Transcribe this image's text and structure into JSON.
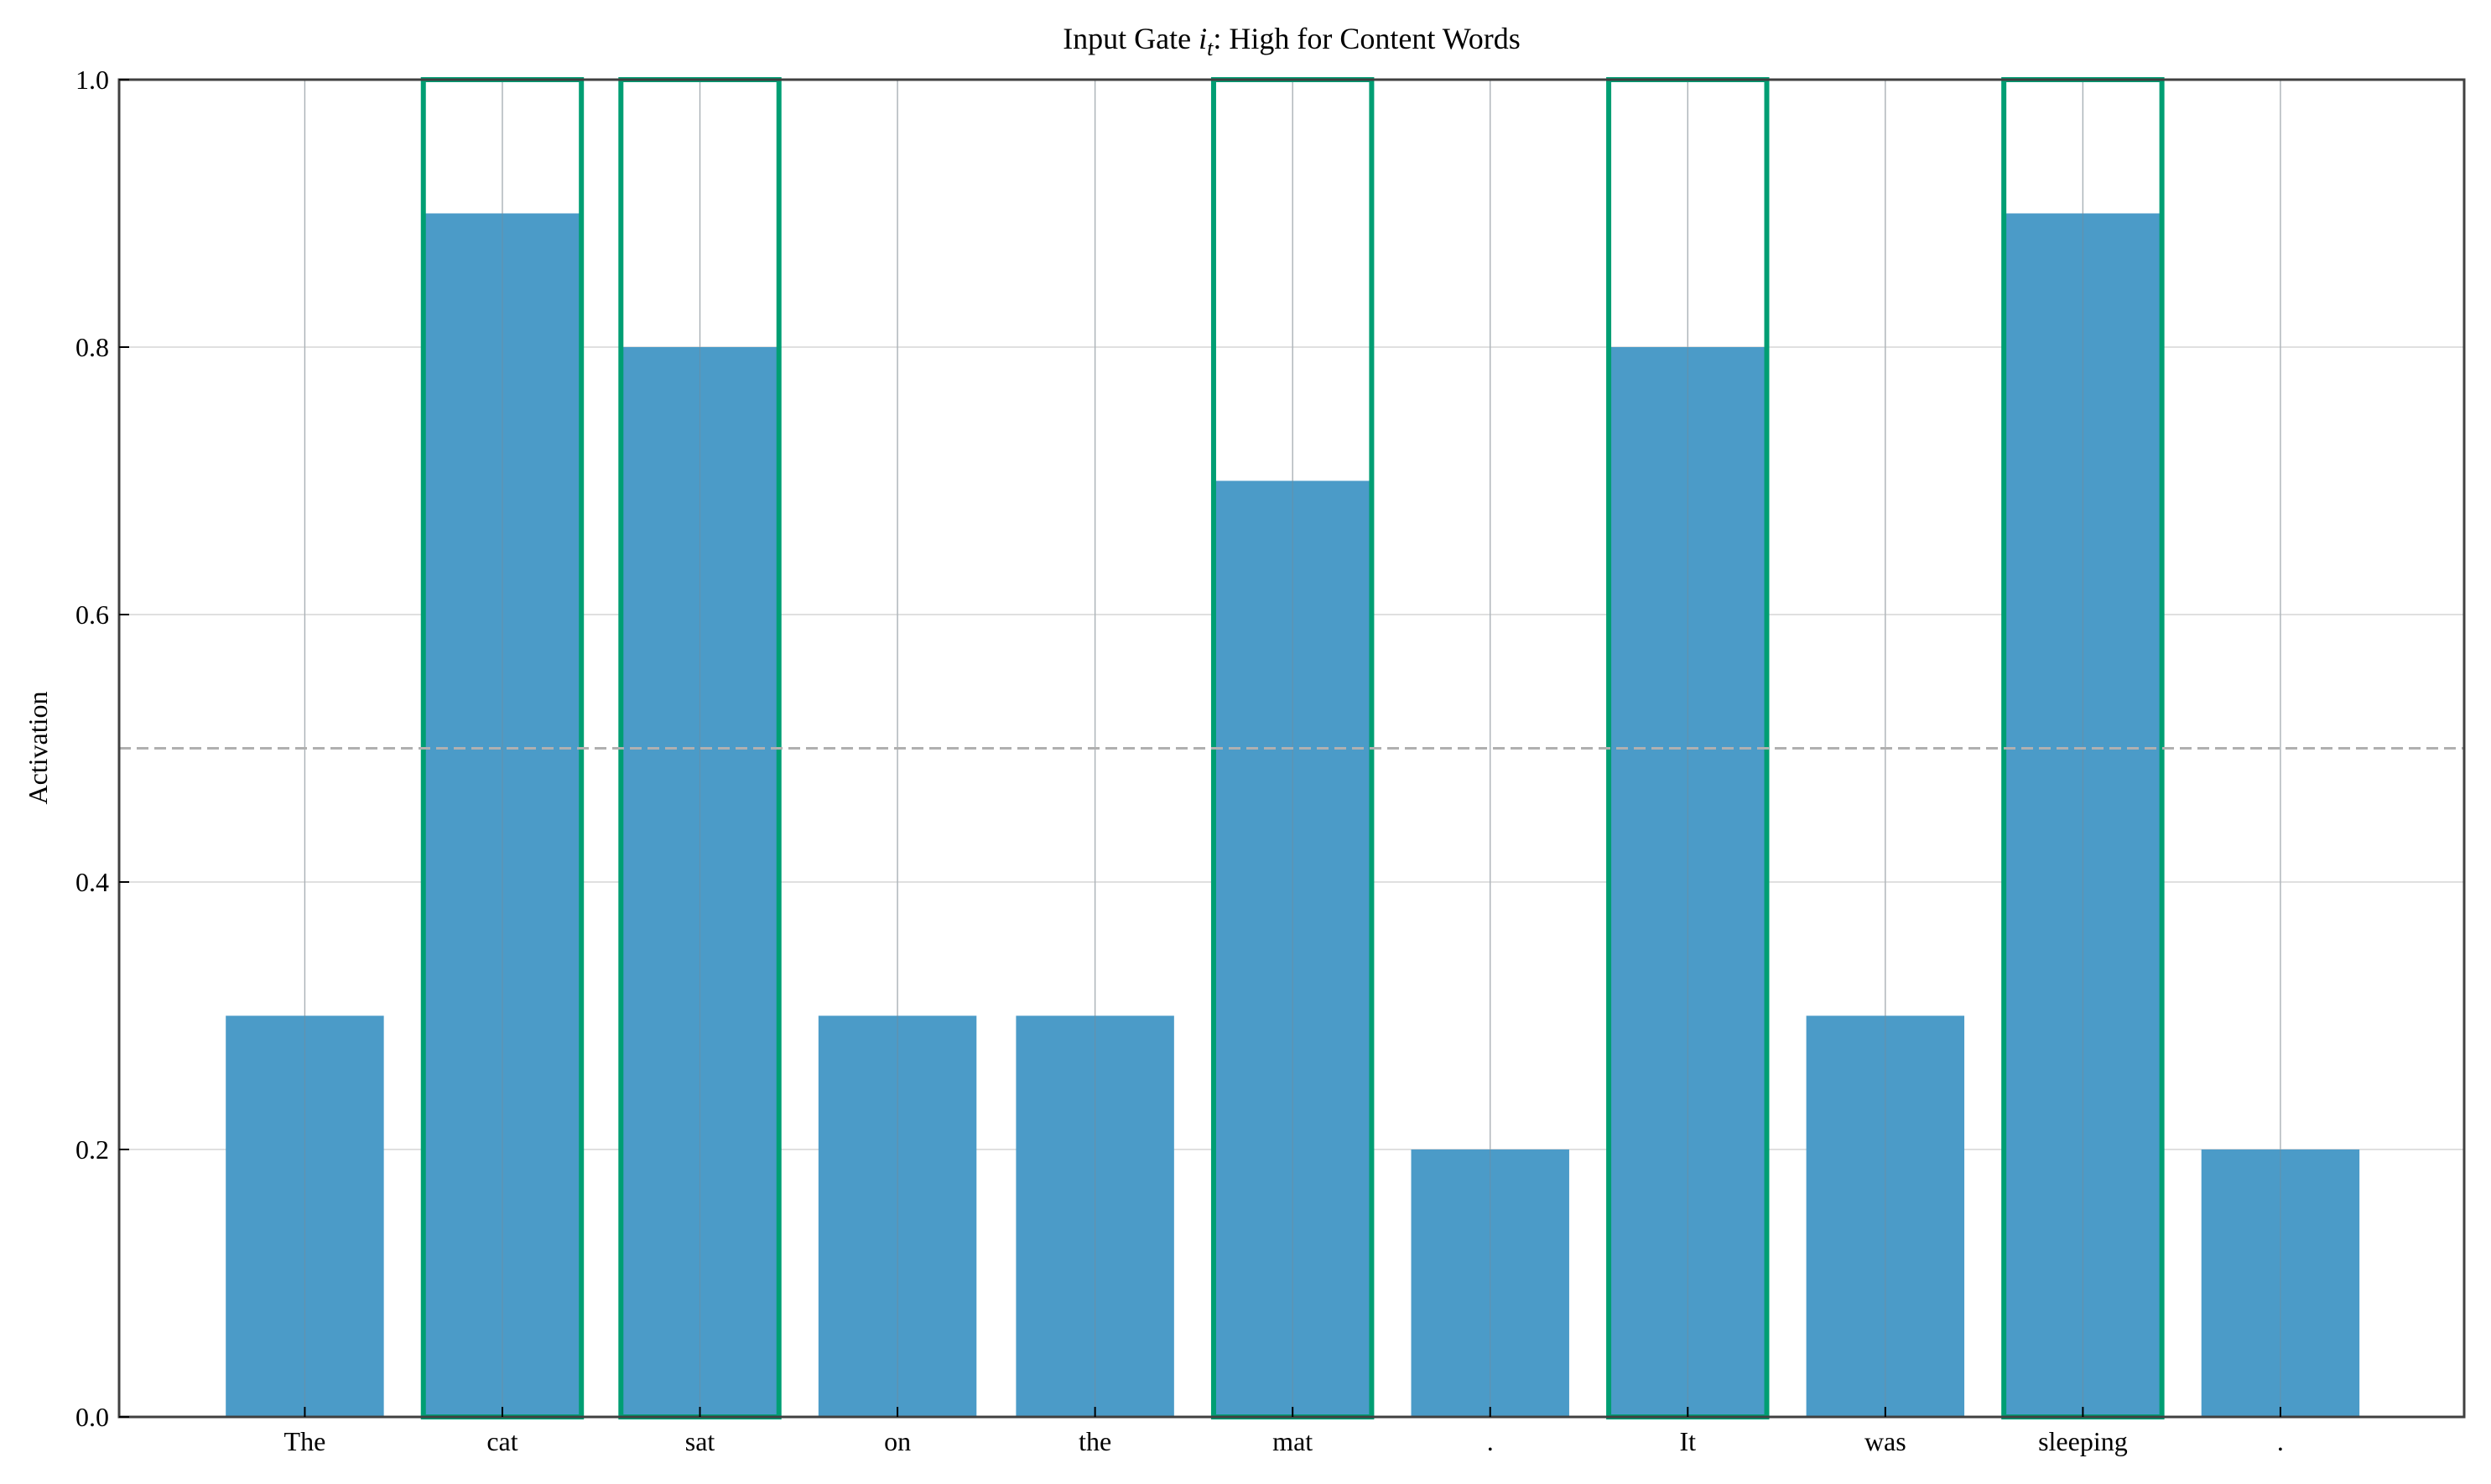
{
  "chart_data": {
    "type": "bar",
    "title_prefix": "Input Gate ",
    "title_var": "i",
    "title_sub": "t",
    "title_suffix": ": High for Content Words",
    "xlabel": "",
    "ylabel": "Activation",
    "categories": [
      "The",
      "cat",
      "sat",
      "on",
      "the",
      "mat",
      ".",
      "It",
      "was",
      "sleeping",
      "."
    ],
    "values": [
      0.3,
      0.9,
      0.8,
      0.3,
      0.3,
      0.7,
      0.2,
      0.8,
      0.3,
      0.9,
      0.2
    ],
    "highlighted": [
      false,
      true,
      true,
      false,
      false,
      true,
      false,
      true,
      false,
      true,
      false
    ],
    "highlight_value": 1.0,
    "threshold": 0.5,
    "ylim": [
      0,
      1.0
    ],
    "xlim": [
      -0.94,
      10.93
    ],
    "yticks": [
      "0.0",
      "0.2",
      "0.4",
      "0.6",
      "0.8",
      "1.0"
    ],
    "grid": true,
    "colors": {
      "bar": "#4b9bc8",
      "highlight": "#009e73",
      "threshold": "#b0b0b0",
      "grid": "#d6d6d6",
      "axis": "#404040"
    }
  }
}
